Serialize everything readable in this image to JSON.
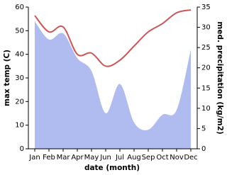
{
  "chart_data": {
    "type": "line-area",
    "x_label": "date (month)",
    "y_label": "max temp (C)",
    "y2_label": "med. precipitation (kg/m2)",
    "categories": [
      "Jan",
      "Feb",
      "Mar",
      "Apr",
      "May",
      "Jun",
      "Jul",
      "Aug",
      "Sep",
      "Oct",
      "Nov",
      "Dec"
    ],
    "series": [
      {
        "name": "max temp",
        "color": "#cd5555",
        "values": [
          56.4,
          49.5,
          51.6,
          40,
          40.5,
          35,
          37.5,
          43.5,
          49.5,
          53,
          57.6,
          58.8
        ]
      },
      {
        "name": "med. precipitation",
        "color": "#b0bcf0",
        "axis": "y2",
        "values": [
          31.5,
          27,
          28.5,
          22.4,
          19.2,
          8.8,
          16,
          6.5,
          4.7,
          8.4,
          9.6,
          24.5
        ]
      }
    ],
    "ylim": [
      0,
      60
    ],
    "yticks": [
      0,
      10,
      20,
      30,
      40,
      50,
      60
    ],
    "y2lim": [
      0,
      35
    ],
    "y2ticks": [
      0,
      5,
      10,
      15,
      20,
      25,
      30,
      35
    ]
  }
}
